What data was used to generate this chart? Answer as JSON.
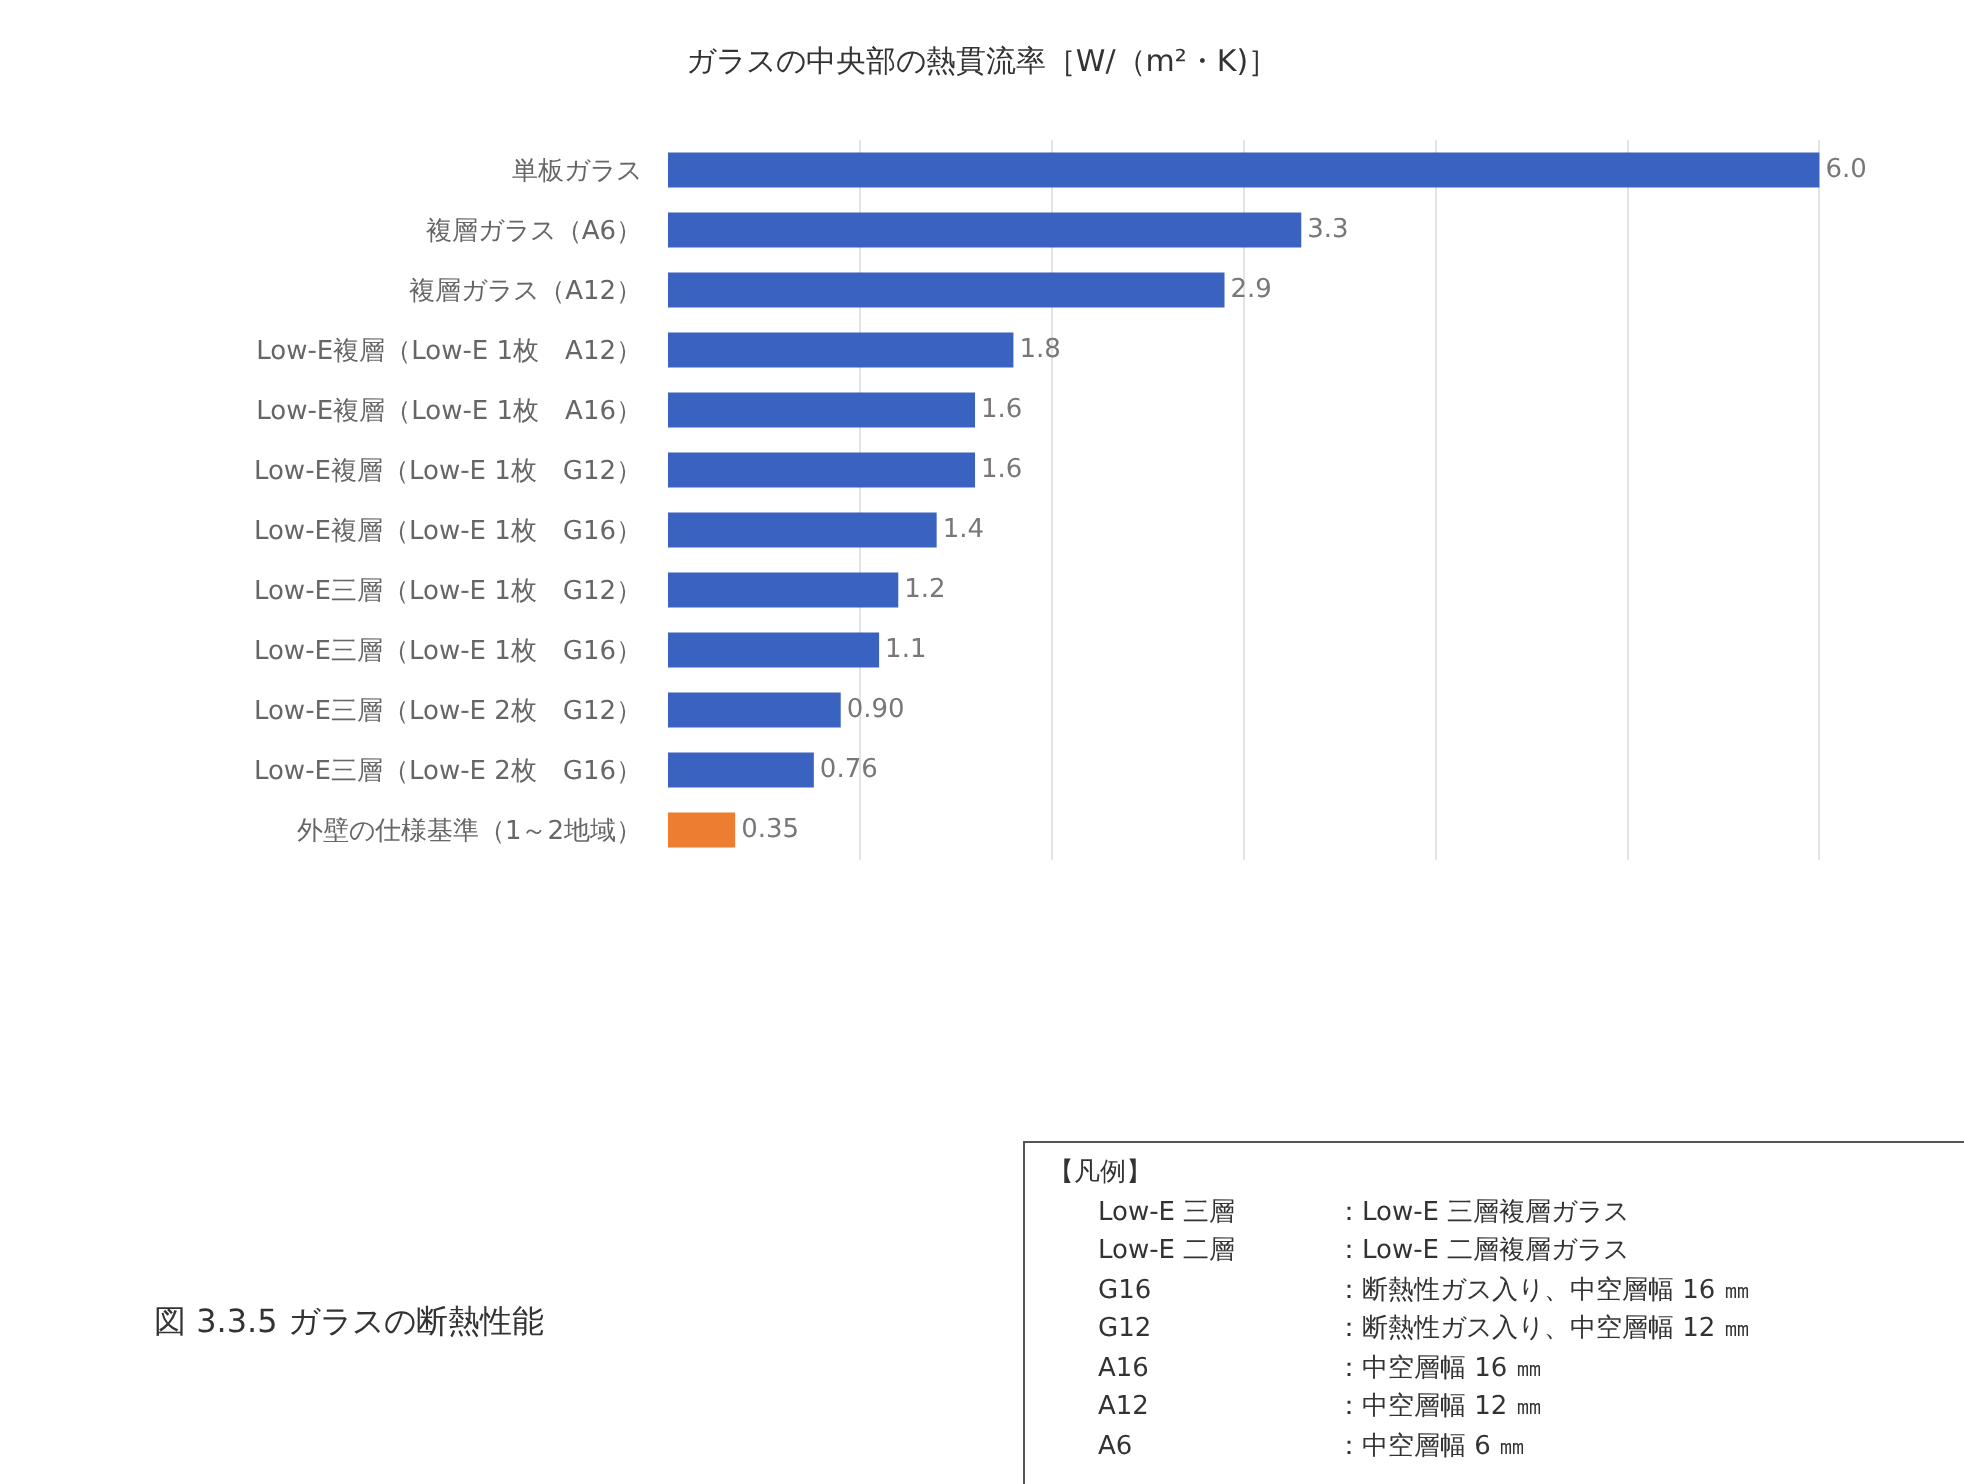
{
  "chart_data": {
    "type": "bar",
    "orientation": "horizontal",
    "title": "ガラスの中央部の熱貫流率［W/（m²・K)］",
    "categories": [
      "単板ガラス",
      "複層ガラス（A6）",
      "複層ガラス（A12）",
      "Low-E複層（Low-E 1枚　A12）",
      "Low-E複層（Low-E 1枚　A16）",
      "Low-E複層（Low-E 1枚　G12）",
      "Low-E複層（Low-E 1枚　G16）",
      "Low-E三層（Low-E 1枚　G12）",
      "Low-E三層（Low-E 1枚　G16）",
      "Low-E三層（Low-E 2枚　G12）",
      "Low-E三層（Low-E 2枚　G16）",
      "外壁の仕様基準（1～2地域）"
    ],
    "values": [
      6.0,
      3.3,
      2.9,
      1.8,
      1.6,
      1.6,
      1.4,
      1.2,
      1.1,
      0.9,
      0.76,
      0.35
    ],
    "value_labels": [
      "6.0",
      "3.3",
      "2.9",
      "1.8",
      "1.6",
      "1.6",
      "1.4",
      "1.2",
      "1.1",
      "0.90",
      "0.76",
      "0.35"
    ],
    "colors": [
      "#3a62c0",
      "#3a62c0",
      "#3a62c0",
      "#3a62c0",
      "#3a62c0",
      "#3a62c0",
      "#3a62c0",
      "#3a62c0",
      "#3a62c0",
      "#3a62c0",
      "#3a62c0",
      "#ed7d31"
    ],
    "tick_labels": "y",
    "grid": "x",
    "annotations": [
      "図 3.3.5 ガラスの断熱性能",
      "【凡例】",
      "Low-E 三層",
      "：Low-E 三層複層ガラス",
      "Low-E 二層",
      "：Low-E 二層複層ガラス",
      "G16",
      "：断熱性ガス入り、中空層幅 16 ㎜",
      "G12",
      "：断熱性ガス入り、中空層幅 12 ㎜",
      "A16",
      "：中空層幅 16 ㎜",
      "A12",
      "：中空層幅 12 ㎜",
      "A6",
      "：中空層幅 6 ㎜"
    ]
  }
}
